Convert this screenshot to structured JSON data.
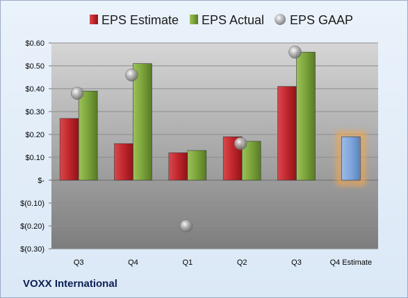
{
  "company": "VOXX International",
  "chart_data": {
    "type": "bar",
    "categories": [
      "Q3",
      "Q4",
      "Q1",
      "Q2",
      "Q3",
      "Q4 Estimate"
    ],
    "ylim": [
      -0.3,
      0.6
    ],
    "yticks": [
      0.6,
      0.5,
      0.4,
      0.3,
      0.2,
      0.1,
      0.0,
      -0.1,
      -0.2,
      -0.3
    ],
    "ytick_labels": [
      "$0.60",
      "$0.50",
      "$0.40",
      "$0.30",
      "$0.20",
      "$0.10",
      "$-",
      "$(0.10)",
      "$(0.20)",
      "$(0.30)"
    ],
    "legend_position": "top",
    "series": [
      {
        "name": "EPS Estimate",
        "type": "bar",
        "color": "#c0262c",
        "values": [
          0.27,
          0.16,
          0.12,
          0.19,
          0.41,
          0.19
        ],
        "highlight_last": true,
        "highlight_color": "#7fa6dc"
      },
      {
        "name": "EPS Actual",
        "type": "bar",
        "color": "#7aa33a",
        "values": [
          0.39,
          0.51,
          0.13,
          0.17,
          0.56,
          null
        ]
      },
      {
        "name": "EPS GAAP",
        "type": "marker",
        "color": "#a9a9a9",
        "values": [
          0.38,
          0.46,
          -0.2,
          0.16,
          0.56,
          null
        ]
      }
    ]
  }
}
